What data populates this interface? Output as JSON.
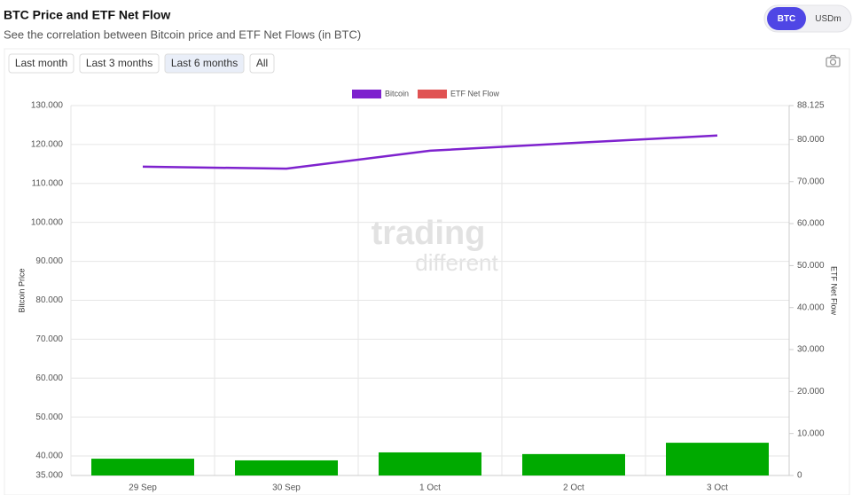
{
  "header": {
    "title": "BTC Price and ETF Net Flow",
    "subtitle": "See the correlation between Bitcoin price and ETF Net Flows (in BTC)"
  },
  "toggle": {
    "options": [
      "BTC",
      "USDm"
    ],
    "active": 0
  },
  "range_buttons": {
    "options": [
      "Last month",
      "Last 3 months",
      "Last 6 months",
      "All"
    ],
    "active": 2
  },
  "chart_data": {
    "type": "bar-line",
    "watermark": [
      "trading",
      "different"
    ],
    "categories": [
      "29 Sep",
      "30 Sep",
      "1 Oct",
      "2 Oct",
      "3 Oct"
    ],
    "series": [
      {
        "name": "Bitcoin",
        "type": "line",
        "color": "#7e22ce",
        "values": [
          114300,
          113800,
          118400,
          120400,
          122300
        ]
      },
      {
        "name": "ETF Net Flow",
        "type": "bar",
        "axis": "y2",
        "color": "#e05252",
        "positive_color": "#00aa00",
        "values": [
          4000,
          3600,
          5500,
          5100,
          7800
        ]
      }
    ],
    "ylabel": "Bitcoin Price",
    "y2label": "ETF Net Flow",
    "ylim": [
      35000,
      130000
    ],
    "yticks": [
      {
        "value": 35000,
        "label": "35.000"
      },
      {
        "value": 40000,
        "label": "40.000"
      },
      {
        "value": 50000,
        "label": "50.000"
      },
      {
        "value": 60000,
        "label": "60.000"
      },
      {
        "value": 70000,
        "label": "70.000"
      },
      {
        "value": 80000,
        "label": "80.000"
      },
      {
        "value": 90000,
        "label": "90.000"
      },
      {
        "value": 100000,
        "label": "100.000"
      },
      {
        "value": 110000,
        "label": "110.000"
      },
      {
        "value": 120000,
        "label": "120.000"
      },
      {
        "value": 130000,
        "label": "130.000"
      }
    ],
    "y2lim": [
      0,
      88125
    ],
    "y2ticks": [
      0,
      {
        "value": 10000,
        "label": "10.000"
      },
      {
        "value": 20000,
        "label": "20.000"
      },
      {
        "value": 30000,
        "label": "30.000"
      },
      {
        "value": 40000,
        "label": "40.000"
      },
      {
        "value": 50000,
        "label": "50.000"
      },
      {
        "value": 60000,
        "label": "60.000"
      },
      {
        "value": 70000,
        "label": "70.000"
      },
      {
        "value": 80000,
        "label": "80.000"
      },
      {
        "value": 88125,
        "label": "88.125"
      }
    ],
    "grid": true,
    "legend": "top"
  }
}
